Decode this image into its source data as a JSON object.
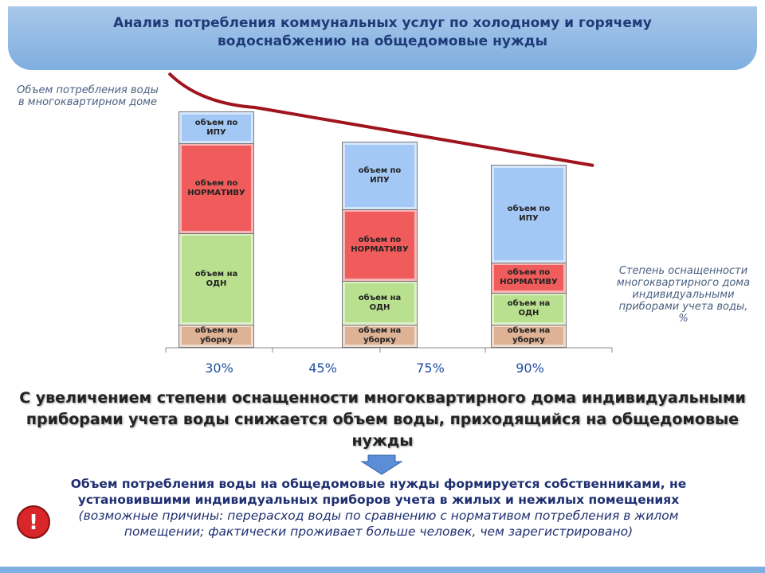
{
  "header": {
    "title": "Анализ потребления коммунальных услуг по холодному и горячему водоснабжению на общедомовые нужды"
  },
  "chart_data": {
    "type": "bar",
    "stacked": true,
    "y_label": "Объем потребления воды в многоквартирном доме",
    "x_label": "Степень оснащенности многоквартирного дома индивидуальными приборами учета воды, %",
    "axis_labels": [
      "30%",
      "45%",
      "75%",
      "90%"
    ],
    "categories": [
      null,
      null,
      null
    ],
    "ylim": [
      0,
      300
    ],
    "series": [
      {
        "name": "объем на уборку",
        "color": "#deb294",
        "values": [
          28,
          28,
          28
        ]
      },
      {
        "name": "объем на ОДН",
        "color": "#b9e08e",
        "values": [
          115,
          55,
          40
        ]
      },
      {
        "name": "объем по НОРМАТИВУ",
        "color": "#f05c5c",
        "values": [
          113,
          90,
          38
        ]
      },
      {
        "name": "объем по ИПУ",
        "color": "#a3c8f5",
        "values": [
          39,
          84,
          122
        ]
      }
    ]
  },
  "headline": "С увеличением степени оснащенности многоквартирного дома индивидуальными приборами учета воды снижается объем воды, приходящийся на общедомовые нужды",
  "note": {
    "bold": "Объем потребления воды на общедомовые нужды формируется собственниками, не установившими индивидуальных приборов учета в жилых и нежилых помещениях",
    "italic": "(возможные причины: перерасход воды по сравнению с нормативом потребления в жилом помещении; фактически проживает больше человек, чем зарегистрировано)"
  }
}
